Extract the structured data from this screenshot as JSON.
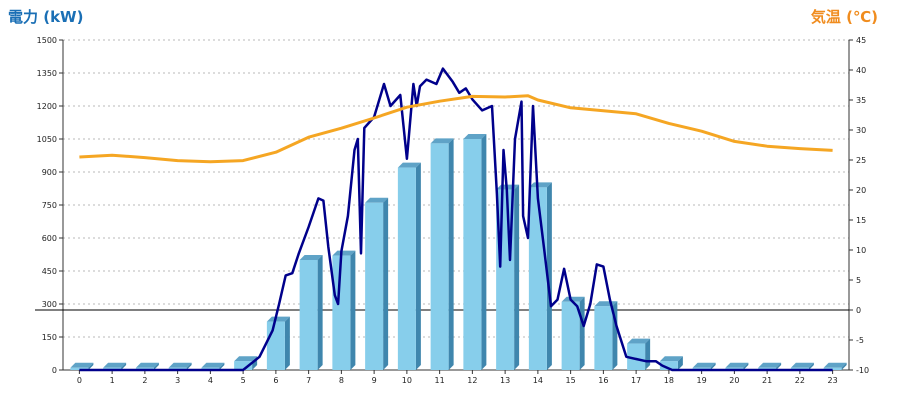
{
  "chart_data": {
    "type": "bar+line",
    "left_axis_label": "電力 (kW)",
    "right_axis_label": "気温 (℃)",
    "x_categories": [
      "0",
      "1",
      "2",
      "3",
      "4",
      "5",
      "6",
      "7",
      "8",
      "9",
      "10",
      "11",
      "12",
      "13",
      "14",
      "15",
      "16",
      "17",
      "18",
      "19",
      "20",
      "21",
      "22",
      "23"
    ],
    "left_ylim": [
      0,
      1500
    ],
    "left_yticks": [
      "0",
      "150",
      "300",
      "450",
      "600",
      "750",
      "900",
      "1050",
      "1200",
      "1350",
      "1500"
    ],
    "right_ylim": [
      -10,
      45
    ],
    "right_yticks": [
      "-10",
      "-5",
      "0",
      "5",
      "10",
      "15",
      "20",
      "25",
      "30",
      "35",
      "40",
      "45"
    ],
    "series": [
      {
        "kind": "bar",
        "axis": "left",
        "color": "#87ceeb",
        "values": [
          10,
          10,
          10,
          10,
          10,
          40,
          220,
          500,
          520,
          760,
          920,
          1030,
          1050,
          820,
          830,
          310,
          290,
          120,
          40,
          10,
          10,
          10,
          10,
          10
        ]
      },
      {
        "kind": "line",
        "axis": "left",
        "color": "#00008b",
        "points": [
          [
            0,
            0
          ],
          [
            5,
            0
          ],
          [
            5.5,
            60
          ],
          [
            5.9,
            180
          ],
          [
            6.1,
            300
          ],
          [
            6.3,
            430
          ],
          [
            6.5,
            440
          ],
          [
            6.7,
            530
          ],
          [
            7.0,
            650
          ],
          [
            7.3,
            780
          ],
          [
            7.45,
            770
          ],
          [
            7.6,
            560
          ],
          [
            7.8,
            340
          ],
          [
            7.9,
            300
          ],
          [
            8.0,
            540
          ],
          [
            8.2,
            700
          ],
          [
            8.4,
            1000
          ],
          [
            8.5,
            1050
          ],
          [
            8.6,
            530
          ],
          [
            8.7,
            1100
          ],
          [
            9.0,
            1150
          ],
          [
            9.3,
            1300
          ],
          [
            9.5,
            1200
          ],
          [
            9.8,
            1250
          ],
          [
            10.0,
            960
          ],
          [
            10.2,
            1300
          ],
          [
            10.3,
            1200
          ],
          [
            10.4,
            1290
          ],
          [
            10.6,
            1320
          ],
          [
            10.9,
            1300
          ],
          [
            11.1,
            1370
          ],
          [
            11.4,
            1310
          ],
          [
            11.6,
            1260
          ],
          [
            11.8,
            1280
          ],
          [
            12.0,
            1230
          ],
          [
            12.3,
            1180
          ],
          [
            12.6,
            1200
          ],
          [
            12.75,
            800
          ],
          [
            12.85,
            470
          ],
          [
            12.95,
            1000
          ],
          [
            13.05,
            820
          ],
          [
            13.15,
            500
          ],
          [
            13.3,
            1050
          ],
          [
            13.5,
            1220
          ],
          [
            13.55,
            700
          ],
          [
            13.7,
            600
          ],
          [
            13.85,
            1200
          ],
          [
            14.0,
            780
          ],
          [
            14.2,
            540
          ],
          [
            14.4,
            290
          ],
          [
            14.6,
            320
          ],
          [
            14.8,
            460
          ],
          [
            15.0,
            320
          ],
          [
            15.2,
            290
          ],
          [
            15.4,
            200
          ],
          [
            15.6,
            300
          ],
          [
            15.8,
            480
          ],
          [
            16.0,
            470
          ],
          [
            16.2,
            320
          ],
          [
            16.4,
            200
          ],
          [
            16.7,
            60
          ],
          [
            17.0,
            50
          ],
          [
            17.3,
            40
          ],
          [
            17.6,
            40
          ],
          [
            17.8,
            20
          ],
          [
            18.1,
            0
          ],
          [
            23,
            0
          ]
        ]
      },
      {
        "kind": "line",
        "axis": "right",
        "color": "#f5a623",
        "points": [
          [
            0,
            25.5
          ],
          [
            1,
            25.8
          ],
          [
            2,
            25.4
          ],
          [
            3,
            24.9
          ],
          [
            4,
            24.7
          ],
          [
            5,
            24.9
          ],
          [
            6,
            26.3
          ],
          [
            7,
            28.8
          ],
          [
            8,
            30.3
          ],
          [
            9,
            32
          ],
          [
            10,
            33.8
          ],
          [
            11,
            34.8
          ],
          [
            12,
            35.6
          ],
          [
            13,
            35.5
          ],
          [
            13.7,
            35.7
          ],
          [
            14,
            35
          ],
          [
            15,
            33.7
          ],
          [
            16,
            33.2
          ],
          [
            17,
            32.7
          ],
          [
            18,
            31.1
          ],
          [
            19,
            29.8
          ],
          [
            20,
            28.1
          ],
          [
            21,
            27.3
          ],
          [
            22,
            26.9
          ],
          [
            23,
            26.6
          ]
        ]
      }
    ],
    "grid": "horizontal-dotted"
  }
}
